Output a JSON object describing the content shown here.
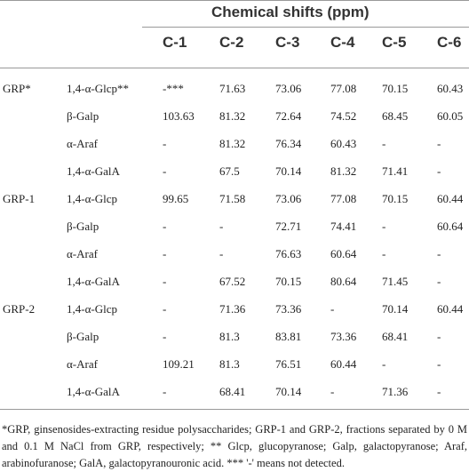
{
  "header": {
    "title": "Chemical shifts (ppm)",
    "columns": [
      "C-1",
      "C-2",
      "C-3",
      "C-4",
      "C-5",
      "C-6"
    ]
  },
  "table": {
    "rows": [
      [
        "GRP*",
        "1,4-α-Glcp**",
        "-***",
        "71.63",
        "73.06",
        "77.08",
        "70.15",
        "60.43"
      ],
      [
        "",
        "β-Galp",
        "103.63",
        "81.32",
        "72.64",
        "74.52",
        "68.45",
        "60.05"
      ],
      [
        "",
        "α-Araf",
        "-",
        "81.32",
        "76.34",
        "60.43",
        "-",
        "-"
      ],
      [
        "",
        "1,4-α-GalA",
        "-",
        "67.5",
        "70.14",
        "81.32",
        "71.41",
        "-"
      ],
      [
        "GRP-1",
        "1,4-α-Glcp",
        "99.65",
        "71.58",
        "73.06",
        "77.08",
        "70.15",
        "60.44"
      ],
      [
        "",
        "β-Galp",
        "-",
        "-",
        "72.71",
        "74.41",
        "-",
        "60.64"
      ],
      [
        "",
        "α-Araf",
        "-",
        "-",
        "76.63",
        "60.64",
        "-",
        "-"
      ],
      [
        "",
        "1,4-α-GalA",
        "-",
        "67.52",
        "70.15",
        "80.64",
        "71.45",
        "-"
      ],
      [
        "GRP-2",
        "1,4-α-Glcp",
        "-",
        "71.36",
        "73.36",
        "-",
        "70.14",
        "60.44"
      ],
      [
        "",
        "β-Galp",
        "-",
        "81.3",
        "83.81",
        "73.36",
        "68.41",
        "-"
      ],
      [
        "",
        "α-Araf",
        "109.21",
        "81.3",
        "76.51",
        "60.44",
        "-",
        "-"
      ],
      [
        "",
        "1,4-α-GalA",
        "-",
        "68.41",
        "70.14",
        "-",
        "71.36",
        "-"
      ]
    ]
  },
  "footnote": "*GRP, ginsenosides-extracting residue polysaccharides; GRP-1 and GRP-2, fractions separated by 0 M and 0.1 M NaCl from GRP, respectively; ** Glcp, glucopyranose; Galp, galactopyranose; Araf, arabinofuranose; GalA, galactopyranouronic acid. *** '-' means not detected."
}
